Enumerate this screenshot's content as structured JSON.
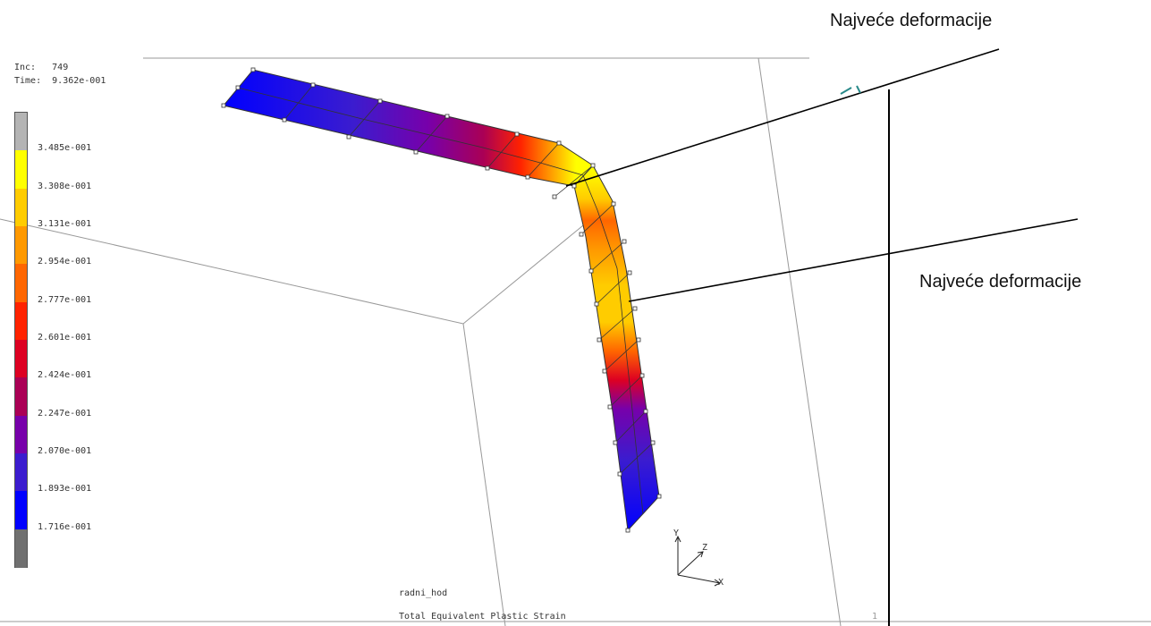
{
  "viewer": {
    "inc_label": "Inc:",
    "inc_value": "749",
    "time_label": "Time:",
    "time_value": "9.362e-001",
    "job_name": "radni_hod",
    "result_name": "Total Equivalent Plastic Strain",
    "page_number": "1"
  },
  "legend": {
    "labels": [
      "3.485e-001",
      "3.308e-001",
      "3.131e-001",
      "2.954e-001",
      "2.777e-001",
      "2.601e-001",
      "2.424e-001",
      "2.247e-001",
      "2.070e-001",
      "1.893e-001",
      "1.716e-001"
    ],
    "colors": [
      "#b4b4b4",
      "#ffff00",
      "#ffcc00",
      "#ff9900",
      "#ff6600",
      "#ff2200",
      "#dd0022",
      "#aa0055",
      "#7700aa",
      "#3b1ccf",
      "#0000ff",
      "#707070"
    ]
  },
  "annotations": [
    {
      "text": "Najveće deformacije"
    },
    {
      "text": "Najveće deformacije"
    }
  ],
  "axes": {
    "x": "X",
    "y": "Y",
    "z": "Z"
  }
}
